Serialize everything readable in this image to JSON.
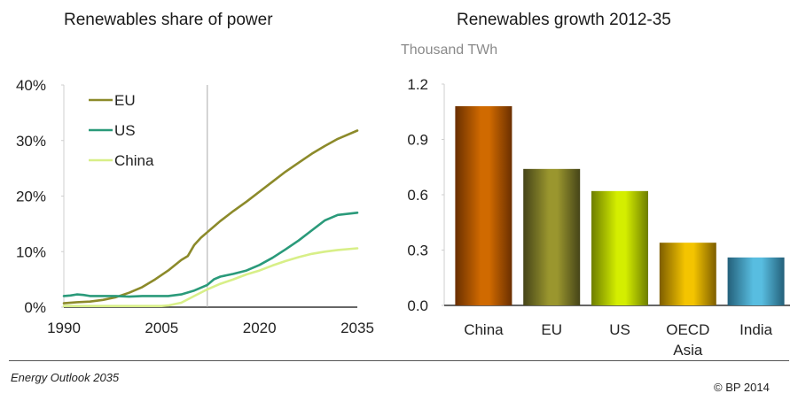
{
  "chart_data": [
    {
      "type": "line",
      "title": "Renewables share of power",
      "xlabel": "",
      "ylabel": "",
      "x_ticks": [
        "1990",
        "2005",
        "2020",
        "2035"
      ],
      "y_ticks": [
        "0%",
        "10%",
        "20%",
        "30%",
        "40%"
      ],
      "xlim": [
        1990,
        2035
      ],
      "ylim": [
        0,
        40
      ],
      "legend": "top-left",
      "grid": false,
      "forecast_divider_year": 2012,
      "series": [
        {
          "name": "EU",
          "color": "#8c8a2a",
          "x": [
            1990,
            1992,
            1994,
            1996,
            1998,
            2000,
            2002,
            2004,
            2006,
            2008,
            2009,
            2010,
            2011,
            2012,
            2014,
            2016,
            2018,
            2020,
            2022,
            2024,
            2026,
            2028,
            2030,
            2032,
            2035
          ],
          "values": [
            0.7,
            0.9,
            1.0,
            1.3,
            1.8,
            2.6,
            3.6,
            5.0,
            6.6,
            8.5,
            9.2,
            11.2,
            12.5,
            13.5,
            15.5,
            17.3,
            19.0,
            20.8,
            22.6,
            24.4,
            26.0,
            27.6,
            29.0,
            30.3,
            31.8
          ]
        },
        {
          "name": "US",
          "color": "#2a9a7a",
          "x": [
            1990,
            1991,
            1992,
            1993,
            1994,
            1996,
            1998,
            2000,
            2002,
            2004,
            2006,
            2008,
            2010,
            2012,
            2013,
            2014,
            2016,
            2018,
            2020,
            2022,
            2024,
            2026,
            2028,
            2030,
            2032,
            2035
          ],
          "values": [
            2.0,
            2.1,
            2.3,
            2.2,
            2.0,
            2.0,
            2.0,
            1.9,
            2.0,
            2.0,
            2.0,
            2.3,
            3.0,
            4.0,
            5.0,
            5.5,
            6.0,
            6.6,
            7.6,
            8.9,
            10.4,
            12.0,
            13.8,
            15.6,
            16.6,
            17.0
          ]
        },
        {
          "name": "China",
          "color": "#d8ef88",
          "x": [
            1990,
            1995,
            2000,
            2005,
            2006,
            2008,
            2010,
            2012,
            2014,
            2016,
            2018,
            2020,
            2022,
            2024,
            2026,
            2028,
            2030,
            2032,
            2035
          ],
          "values": [
            0.2,
            0.2,
            0.2,
            0.2,
            0.3,
            0.8,
            2.0,
            3.2,
            4.2,
            5.0,
            5.9,
            6.6,
            7.5,
            8.3,
            9.0,
            9.6,
            10.0,
            10.3,
            10.6
          ]
        }
      ]
    },
    {
      "type": "bar",
      "title": "Renewables growth 2012-35",
      "ylabel": "Thousand TWh",
      "xlabel": "",
      "categories": [
        "China",
        "EU",
        "US",
        "OECD Asia",
        "India"
      ],
      "category_lines": [
        [
          "China"
        ],
        [
          "EU"
        ],
        [
          "US"
        ],
        [
          "OECD",
          "Asia"
        ],
        [
          "India"
        ]
      ],
      "values": [
        1.08,
        0.74,
        0.62,
        0.34,
        0.26
      ],
      "colors": [
        "#d06a00",
        "#9a962e",
        "#d4ee00",
        "#f4c400",
        "#58bde0"
      ],
      "dark_colors": [
        "#6a2f00",
        "#454418",
        "#6e7e00",
        "#7e5e00",
        "#24607a"
      ],
      "y_ticks": [
        "0.0",
        "0.3",
        "0.6",
        "0.9",
        "1.2"
      ],
      "ylim": [
        0,
        1.2
      ],
      "grid": false
    }
  ],
  "footer": {
    "left": "Energy Outlook 2035",
    "right": "© BP 2014"
  }
}
